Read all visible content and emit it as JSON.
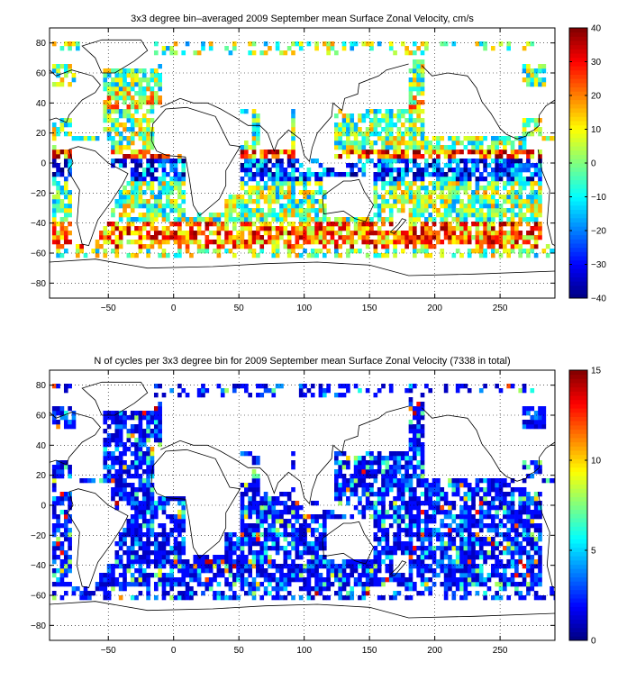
{
  "chart_data": [
    {
      "type": "heatmap",
      "title": "3x3 degree bin–averaged 2009 September mean Surface Zonal Velocity, cm/s",
      "xlabel": "",
      "ylabel": "",
      "xlim": [
        -95,
        292
      ],
      "ylim": [
        -90,
        90
      ],
      "x_ticks": [
        -50,
        0,
        50,
        100,
        150,
        200,
        250
      ],
      "y_ticks": [
        80,
        60,
        40,
        20,
        0,
        -20,
        -40,
        -60,
        -80
      ],
      "grid": true,
      "grid_style": "dotted",
      "bin_size_deg": 3,
      "colorbar": {
        "min": -40,
        "max": 40,
        "ticks": [
          40,
          30,
          20,
          10,
          0,
          -10,
          -20,
          -30,
          -40
        ],
        "colormap": "jet"
      }
    },
    {
      "type": "heatmap",
      "title": "N of cycles per 3x3 degree bin for 2009 September mean Surface Zonal Velocity (7338 in total)",
      "xlabel": "",
      "ylabel": "",
      "xlim": [
        -95,
        292
      ],
      "ylim": [
        -90,
        90
      ],
      "x_ticks": [
        -50,
        0,
        50,
        100,
        150,
        200,
        250
      ],
      "y_ticks": [
        80,
        60,
        40,
        20,
        0,
        -20,
        -40,
        -60,
        -80
      ],
      "grid": true,
      "grid_style": "dotted",
      "bin_size_deg": 3,
      "colorbar": {
        "min": 0,
        "max": 15,
        "ticks": [
          15,
          10,
          5,
          0
        ],
        "colormap": "jet"
      }
    }
  ]
}
